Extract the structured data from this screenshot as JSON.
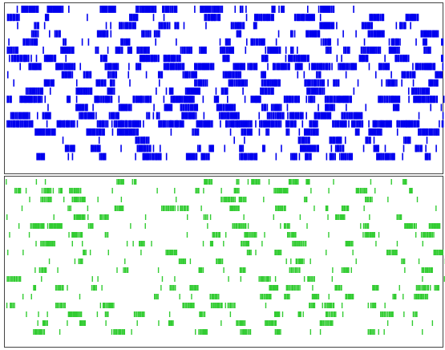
{
  "chart_data": [
    {
      "type": "raster",
      "xlabel": "",
      "ylabel": "",
      "grid": false,
      "legend": "none",
      "color": "#0000ee",
      "time_range": [
        0,
        1000
      ],
      "rows": 19,
      "density": [
        0.42,
        0.3,
        0.22,
        0.28,
        0.1,
        0.5,
        0.32,
        0.55,
        0.2,
        0.4,
        0.3,
        0.52,
        0.28,
        0.45,
        0.6,
        0.38,
        0.05,
        0.22,
        0.35
      ],
      "seed": 17
    },
    {
      "type": "raster",
      "xlabel": "",
      "ylabel": "",
      "grid": false,
      "legend": "none",
      "color": "#33cc33",
      "time_range": [
        0,
        1000
      ],
      "rows": 18,
      "density": [
        0.05,
        0.06,
        0.05,
        0.07,
        0.06,
        0.06,
        0.05,
        0.07,
        0.06,
        0.05,
        0.06,
        0.07,
        0.05,
        0.06,
        0.07,
        0.06,
        0.05,
        0.06
      ],
      "seed": 91
    }
  ]
}
